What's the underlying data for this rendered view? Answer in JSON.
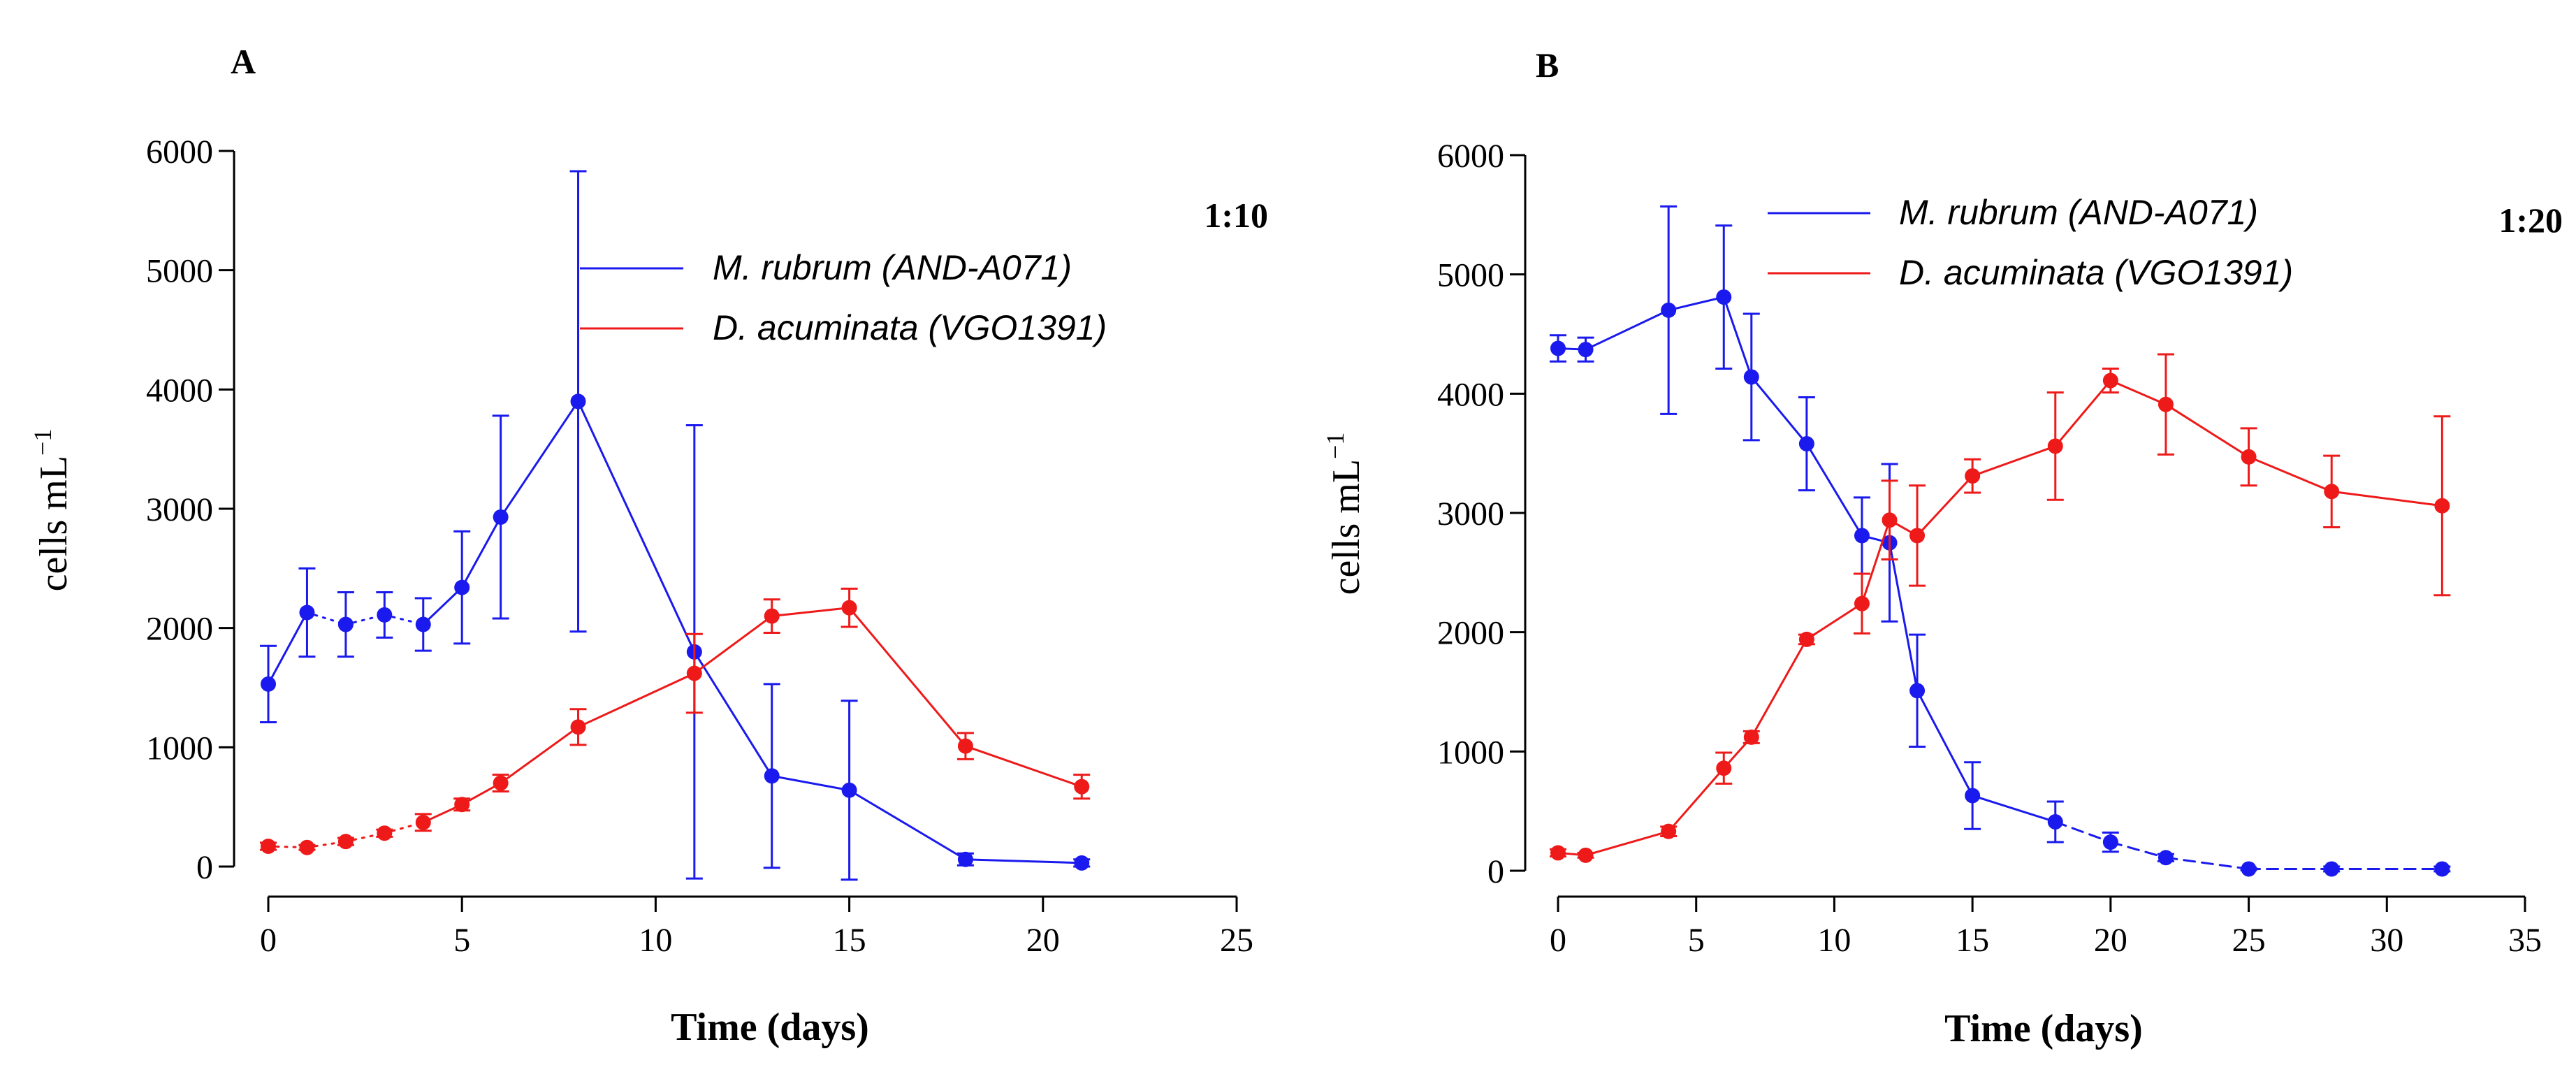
{
  "colors": {
    "series_blue": "#1a1aee",
    "series_red": "#ee1a1a",
    "axis": "#000000",
    "background": "#ffffff"
  },
  "chart_data": [
    {
      "type": "line",
      "panel_label": "A",
      "ratio_label": "1:10",
      "xlabel": "Time (days)",
      "ylabel": "cells  mL",
      "ylabel_sup": "−1",
      "xlim": [
        0,
        25
      ],
      "ylim": [
        0,
        6000
      ],
      "xticks": [
        0,
        5,
        10,
        15,
        20,
        25
      ],
      "yticks": [
        0,
        1000,
        2000,
        3000,
        4000,
        5000,
        6000
      ],
      "grid": false,
      "legend_position": "top-right",
      "series": [
        {
          "name": "M. rubrum (AND-A071)",
          "color": "#1a1aee",
          "x": [
            0,
            1,
            2,
            3,
            4,
            5,
            6,
            8,
            11,
            13,
            15,
            18,
            21
          ],
          "y": [
            1530,
            2130,
            2030,
            2110,
            2030,
            2340,
            2930,
            3900,
            1800,
            760,
            640,
            60,
            30
          ],
          "err": [
            320,
            370,
            270,
            190,
            220,
            470,
            850,
            1930,
            1900,
            770,
            750,
            50,
            30
          ],
          "line_style": [
            "solid",
            "dotted",
            "dotted",
            "dotted",
            "solid",
            "solid",
            "solid",
            "solid",
            "solid",
            "solid",
            "solid",
            "solid"
          ]
        },
        {
          "name": "D. acuminata (VGO1391)",
          "color": "#ee1a1a",
          "x": [
            0,
            1,
            2,
            3,
            4,
            5,
            6,
            8,
            11,
            13,
            15,
            18,
            21
          ],
          "y": [
            170,
            160,
            210,
            280,
            370,
            520,
            700,
            1170,
            1620,
            2100,
            2170,
            1010,
            670
          ],
          "err": [
            30,
            20,
            30,
            30,
            70,
            50,
            70,
            150,
            330,
            140,
            160,
            110,
            100
          ],
          "line_style": [
            "dotted",
            "dotted",
            "dotted",
            "dotted",
            "solid",
            "solid",
            "solid",
            "solid",
            "solid",
            "solid",
            "solid",
            "solid"
          ]
        }
      ]
    },
    {
      "type": "line",
      "panel_label": "B",
      "ratio_label": "1:20",
      "xlabel": "Time (days)",
      "ylabel": "cells  mL",
      "ylabel_sup": "−1",
      "xlim": [
        0,
        35
      ],
      "ylim": [
        0,
        6000
      ],
      "xticks": [
        0,
        5,
        10,
        15,
        20,
        25,
        30,
        35
      ],
      "yticks": [
        0,
        1000,
        2000,
        3000,
        4000,
        5000,
        6000
      ],
      "grid": false,
      "legend_position": "top-center",
      "series": [
        {
          "name": "M. rubrum (AND-A071)",
          "color": "#1a1aee",
          "x": [
            0,
            1,
            4,
            6,
            7,
            9,
            11,
            12,
            13,
            15,
            18,
            20,
            22,
            25,
            28,
            32
          ],
          "y": [
            4380,
            4370,
            4700,
            4810,
            4140,
            3580,
            2810,
            2750,
            1510,
            630,
            410,
            240,
            110,
            15,
            15,
            15
          ],
          "err": [
            110,
            100,
            870,
            600,
            530,
            390,
            320,
            660,
            470,
            280,
            170,
            80,
            30,
            10,
            20,
            20
          ],
          "line_style": [
            "solid",
            "solid",
            "solid",
            "solid",
            "solid",
            "solid",
            "solid",
            "solid",
            "solid",
            "solid",
            "dashed",
            "dashed",
            "dashed",
            "dashed",
            "dashed"
          ]
        },
        {
          "name": "D. acuminata (VGO1391)",
          "color": "#ee1a1a",
          "x": [
            0,
            1,
            4,
            6,
            7,
            9,
            11,
            12,
            13,
            15,
            18,
            20,
            22,
            25,
            28,
            32
          ],
          "y": [
            150,
            130,
            330,
            860,
            1120,
            1940,
            2240,
            2940,
            2810,
            3310,
            3560,
            4110,
            3910,
            3470,
            3180,
            3060
          ],
          "err": [
            30,
            20,
            40,
            130,
            50,
            40,
            250,
            330,
            420,
            140,
            450,
            100,
            420,
            240,
            300,
            750
          ],
          "line_style": [
            "solid",
            "solid",
            "solid",
            "solid",
            "solid",
            "solid",
            "solid",
            "solid",
            "solid",
            "solid",
            "solid",
            "solid",
            "solid",
            "solid",
            "solid"
          ]
        }
      ]
    }
  ]
}
